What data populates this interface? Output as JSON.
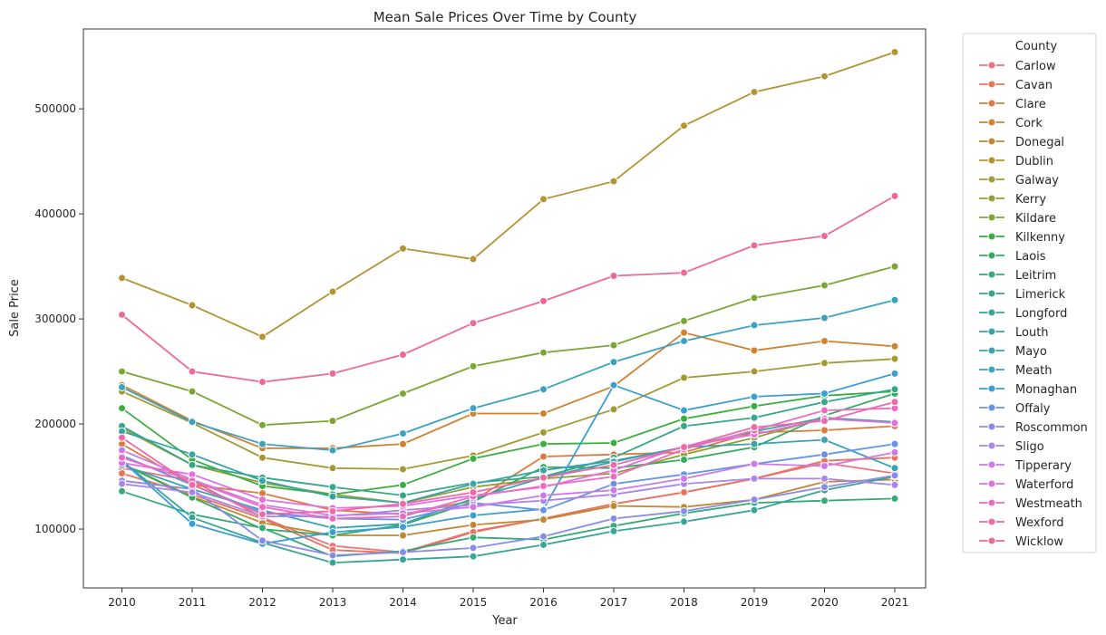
{
  "chart_data": {
    "type": "line",
    "title": "Mean Sale Prices Over Time by County",
    "xlabel": "Year",
    "ylabel": "Sale Price",
    "x": [
      2010,
      2011,
      2012,
      2013,
      2014,
      2015,
      2016,
      2017,
      2018,
      2019,
      2020,
      2021
    ],
    "ylim": [
      44000,
      576000
    ],
    "yticks": [
      100000,
      200000,
      300000,
      400000,
      500000
    ],
    "grid": false,
    "legend": {
      "title": "County",
      "placement": "outside-right"
    },
    "series": [
      {
        "name": "Carlow",
        "color": "#f0707e",
        "values": [
          158000,
          146000,
          111000,
          84000,
          78000,
          98000,
          110000,
          124000,
          135000,
          148000,
          163000,
          153000
        ]
      },
      {
        "name": "Cavan",
        "color": "#e8745c",
        "values": [
          153000,
          133000,
          110000,
          80000,
          77000,
          97000,
          110000,
          124000,
          135000,
          148000,
          165000,
          168000
        ]
      },
      {
        "name": "Clare",
        "color": "#dd7b3f",
        "values": [
          181000,
          142000,
          134000,
          118000,
          114000,
          127000,
          169000,
          171000,
          173000,
          192000,
          194000,
          198000
        ]
      },
      {
        "name": "Cork",
        "color": "#cf822f",
        "values": [
          237000,
          203000,
          177000,
          177000,
          181000,
          210000,
          210000,
          236000,
          287000,
          270000,
          279000,
          274000
        ]
      },
      {
        "name": "Donegal",
        "color": "#c08931",
        "values": [
          162000,
          131000,
          106000,
          94000,
          94000,
          104000,
          109000,
          122000,
          121000,
          128000,
          145000,
          147000
        ]
      },
      {
        "name": "Dublin",
        "color": "#b39332",
        "values": [
          339000,
          313000,
          283000,
          326000,
          367000,
          357000,
          414000,
          431000,
          484000,
          516000,
          531000,
          554000
        ]
      },
      {
        "name": "Galway",
        "color": "#a59933",
        "values": [
          231000,
          201000,
          168000,
          158000,
          157000,
          170000,
          192000,
          214000,
          244000,
          250000,
          258000,
          262000
        ]
      },
      {
        "name": "Kerry",
        "color": "#969f32",
        "values": [
          196000,
          161000,
          144000,
          133000,
          125000,
          140000,
          148000,
          153000,
          171000,
          187000,
          206000,
          201000
        ]
      },
      {
        "name": "Kildare",
        "color": "#7aa734",
        "values": [
          250000,
          231000,
          199000,
          203000,
          229000,
          255000,
          268000,
          275000,
          298000,
          320000,
          332000,
          350000
        ]
      },
      {
        "name": "Kilkenny",
        "color": "#3aae3f",
        "values": [
          215000,
          166000,
          141000,
          133000,
          142000,
          167000,
          181000,
          182000,
          205000,
          217000,
          227000,
          231000
        ]
      },
      {
        "name": "Laois",
        "color": "#35ab62",
        "values": [
          162000,
          130000,
          100000,
          94000,
          104000,
          126000,
          159000,
          158000,
          166000,
          178000,
          208000,
          229000
        ]
      },
      {
        "name": "Leitrim",
        "color": "#35a977",
        "values": [
          136000,
          114000,
          101000,
          74000,
          79000,
          92000,
          90000,
          103000,
          115000,
          125000,
          127000,
          129000
        ]
      },
      {
        "name": "Limerick",
        "color": "#36a788",
        "values": [
          198000,
          161000,
          149000,
          140000,
          132000,
          144000,
          150000,
          168000,
          198000,
          206000,
          221000,
          233000
        ]
      },
      {
        "name": "Longford",
        "color": "#37a598",
        "values": [
          165000,
          111000,
          87000,
          68000,
          71000,
          74000,
          85000,
          98000,
          107000,
          118000,
          137000,
          150000
        ]
      },
      {
        "name": "Louth",
        "color": "#38a4a4",
        "values": [
          193000,
          171000,
          146000,
          131000,
          125000,
          143000,
          156000,
          165000,
          178000,
          193000,
          206000,
          202000
        ]
      },
      {
        "name": "Mayo",
        "color": "#39a3b1",
        "values": [
          161000,
          138000,
          118000,
          101000,
          105000,
          129000,
          149000,
          164000,
          178000,
          181000,
          185000,
          158000
        ]
      },
      {
        "name": "Meath",
        "color": "#3ba3c0",
        "values": [
          235000,
          202000,
          181000,
          175000,
          191000,
          215000,
          233000,
          259000,
          279000,
          294000,
          301000,
          318000
        ]
      },
      {
        "name": "Monaghan",
        "color": "#3c9fd2",
        "values": [
          165000,
          105000,
          86000,
          97000,
          102000,
          113000,
          119000,
          237000,
          213000,
          226000,
          229000,
          248000
        ]
      },
      {
        "name": "Offaly",
        "color": "#6493e8",
        "values": [
          170000,
          142000,
          116000,
          110000,
          109000,
          125000,
          118000,
          143000,
          152000,
          162000,
          171000,
          181000
        ]
      },
      {
        "name": "Roscommon",
        "color": "#8a8be8",
        "values": [
          146000,
          138000,
          89000,
          75000,
          78000,
          82000,
          93000,
          110000,
          117000,
          128000,
          140000,
          151000
        ]
      },
      {
        "name": "Sligo",
        "color": "#ab85eb",
        "values": [
          143000,
          135000,
          112000,
          112000,
          118000,
          123000,
          127000,
          133000,
          143000,
          148000,
          148000,
          142000
        ]
      },
      {
        "name": "Tipperary",
        "color": "#cc7ae5",
        "values": [
          175000,
          147000,
          123000,
          113000,
          115000,
          121000,
          132000,
          137000,
          148000,
          162000,
          160000,
          173000
        ]
      },
      {
        "name": "Waterford",
        "color": "#e46ee0",
        "values": [
          163000,
          152000,
          128000,
          120000,
          122000,
          132000,
          140000,
          156000,
          179000,
          190000,
          205000,
          201000
        ]
      },
      {
        "name": "Westmeath",
        "color": "#ec6cc1",
        "values": [
          168000,
          146000,
          121000,
          110000,
          112000,
          131000,
          141000,
          150000,
          176000,
          194000,
          213000,
          215000
        ]
      },
      {
        "name": "Wexford",
        "color": "#ef6aa9",
        "values": [
          187000,
          142000,
          114000,
          117000,
          124000,
          135000,
          149000,
          161000,
          178000,
          197000,
          203000,
          221000
        ]
      },
      {
        "name": "Wicklow",
        "color": "#ef6a93",
        "values": [
          304000,
          250000,
          240000,
          248000,
          266000,
          296000,
          317000,
          341000,
          344000,
          370000,
          379000,
          417000
        ]
      }
    ]
  }
}
